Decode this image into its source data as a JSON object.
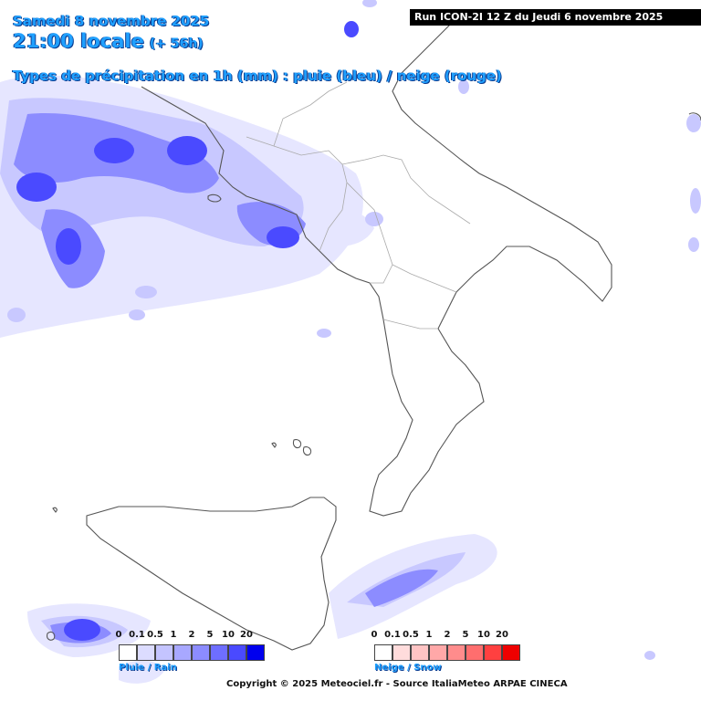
{
  "header": {
    "date": "Samedi 8 novembre 2025",
    "time": "21:00 locale",
    "offset": "(+ 56h)",
    "subtitle": "Types de précipitation en 1h (mm) : pluie (bleu) / neige (rouge)"
  },
  "run_banner": "Run ICON-2I 12 Z du Jeudi 6 novembre 2025",
  "legend": {
    "rain": {
      "caption": "Pluie / Rain",
      "ticks": [
        "0",
        "0.1",
        "0.5",
        "1",
        "2",
        "5",
        "10",
        "20"
      ],
      "colors": [
        "#ffffff",
        "#dcdcff",
        "#c4c4ff",
        "#a8a8ff",
        "#8c8cff",
        "#6e6eff",
        "#4a4aff",
        "#0000ee"
      ]
    },
    "snow": {
      "caption": "Neige / Snow",
      "ticks": [
        "0",
        "0.1",
        "0.5",
        "1",
        "2",
        "5",
        "10",
        "20"
      ],
      "colors": [
        "#ffffff",
        "#ffdcdc",
        "#ffc4c4",
        "#ffa8a8",
        "#ff8c8c",
        "#ff6e6e",
        "#ff4040",
        "#ee0000"
      ]
    }
  },
  "copyright": "Copyright © 2025 Meteociel.fr - Source ItaliaMeteo ARPAE CINECA",
  "map_colors": {
    "coast": "#555555",
    "border": "#aaaaaa",
    "rain_light": "#e6e6ff",
    "rain_mid": "#c8c8ff",
    "rain_strong": "#8c8cff",
    "rain_heavy": "#4a4aff"
  }
}
